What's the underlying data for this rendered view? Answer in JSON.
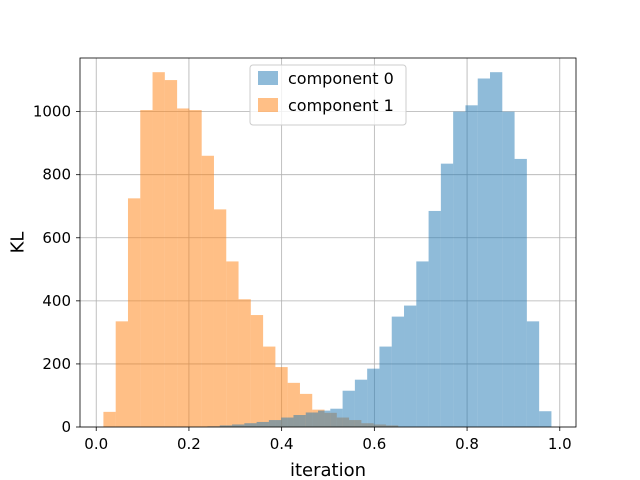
{
  "chart_data": {
    "type": "bar",
    "xlabel": "iteration",
    "ylabel": "KL",
    "xlim": [
      -0.035,
      1.035
    ],
    "ylim": [
      0,
      1170
    ],
    "xticks": [
      0.0,
      0.2,
      0.4,
      0.6,
      0.8,
      1.0
    ],
    "xtick_labels": [
      "0.0",
      "0.2",
      "0.4",
      "0.6",
      "0.8",
      "1.0"
    ],
    "yticks": [
      0,
      200,
      400,
      600,
      800,
      1000
    ],
    "ytick_labels": [
      "0",
      "200",
      "400",
      "600",
      "800",
      "1000"
    ],
    "grid": true,
    "legend_position": "top-center",
    "bin_width": 0.0265,
    "series": [
      {
        "name": "component 0",
        "color": "#1f77b4",
        "alpha": 0.5,
        "bin_starts": [
          0.24,
          0.2665,
          0.293,
          0.3195,
          0.346,
          0.3725,
          0.399,
          0.4255,
          0.452,
          0.4785,
          0.505,
          0.5315,
          0.558,
          0.5845,
          0.611,
          0.6375,
          0.664,
          0.6905,
          0.717,
          0.7435,
          0.77,
          0.7965,
          0.823,
          0.8495,
          0.876,
          0.9025,
          0.929,
          0.9555
        ],
        "counts": [
          2,
          5,
          8,
          12,
          16,
          22,
          30,
          38,
          46,
          52,
          58,
          115,
          150,
          185,
          255,
          350,
          385,
          525,
          685,
          835,
          1000,
          1020,
          1105,
          1125,
          1000,
          850,
          335,
          50
        ]
      },
      {
        "name": "component 1",
        "color": "#ff7f0e",
        "alpha": 0.5,
        "bin_starts": [
          0.0155,
          0.042,
          0.0685,
          0.095,
          0.1215,
          0.148,
          0.1745,
          0.201,
          0.2275,
          0.254,
          0.2805,
          0.307,
          0.3335,
          0.36,
          0.3865,
          0.413,
          0.4395,
          0.466,
          0.4925,
          0.519,
          0.5455,
          0.572,
          0.5985,
          0.625
        ],
        "counts": [
          48,
          335,
          725,
          1005,
          1125,
          1100,
          1010,
          1005,
          860,
          690,
          525,
          405,
          355,
          255,
          190,
          140,
          105,
          55,
          45,
          30,
          22,
          12,
          8,
          5
        ]
      }
    ]
  }
}
